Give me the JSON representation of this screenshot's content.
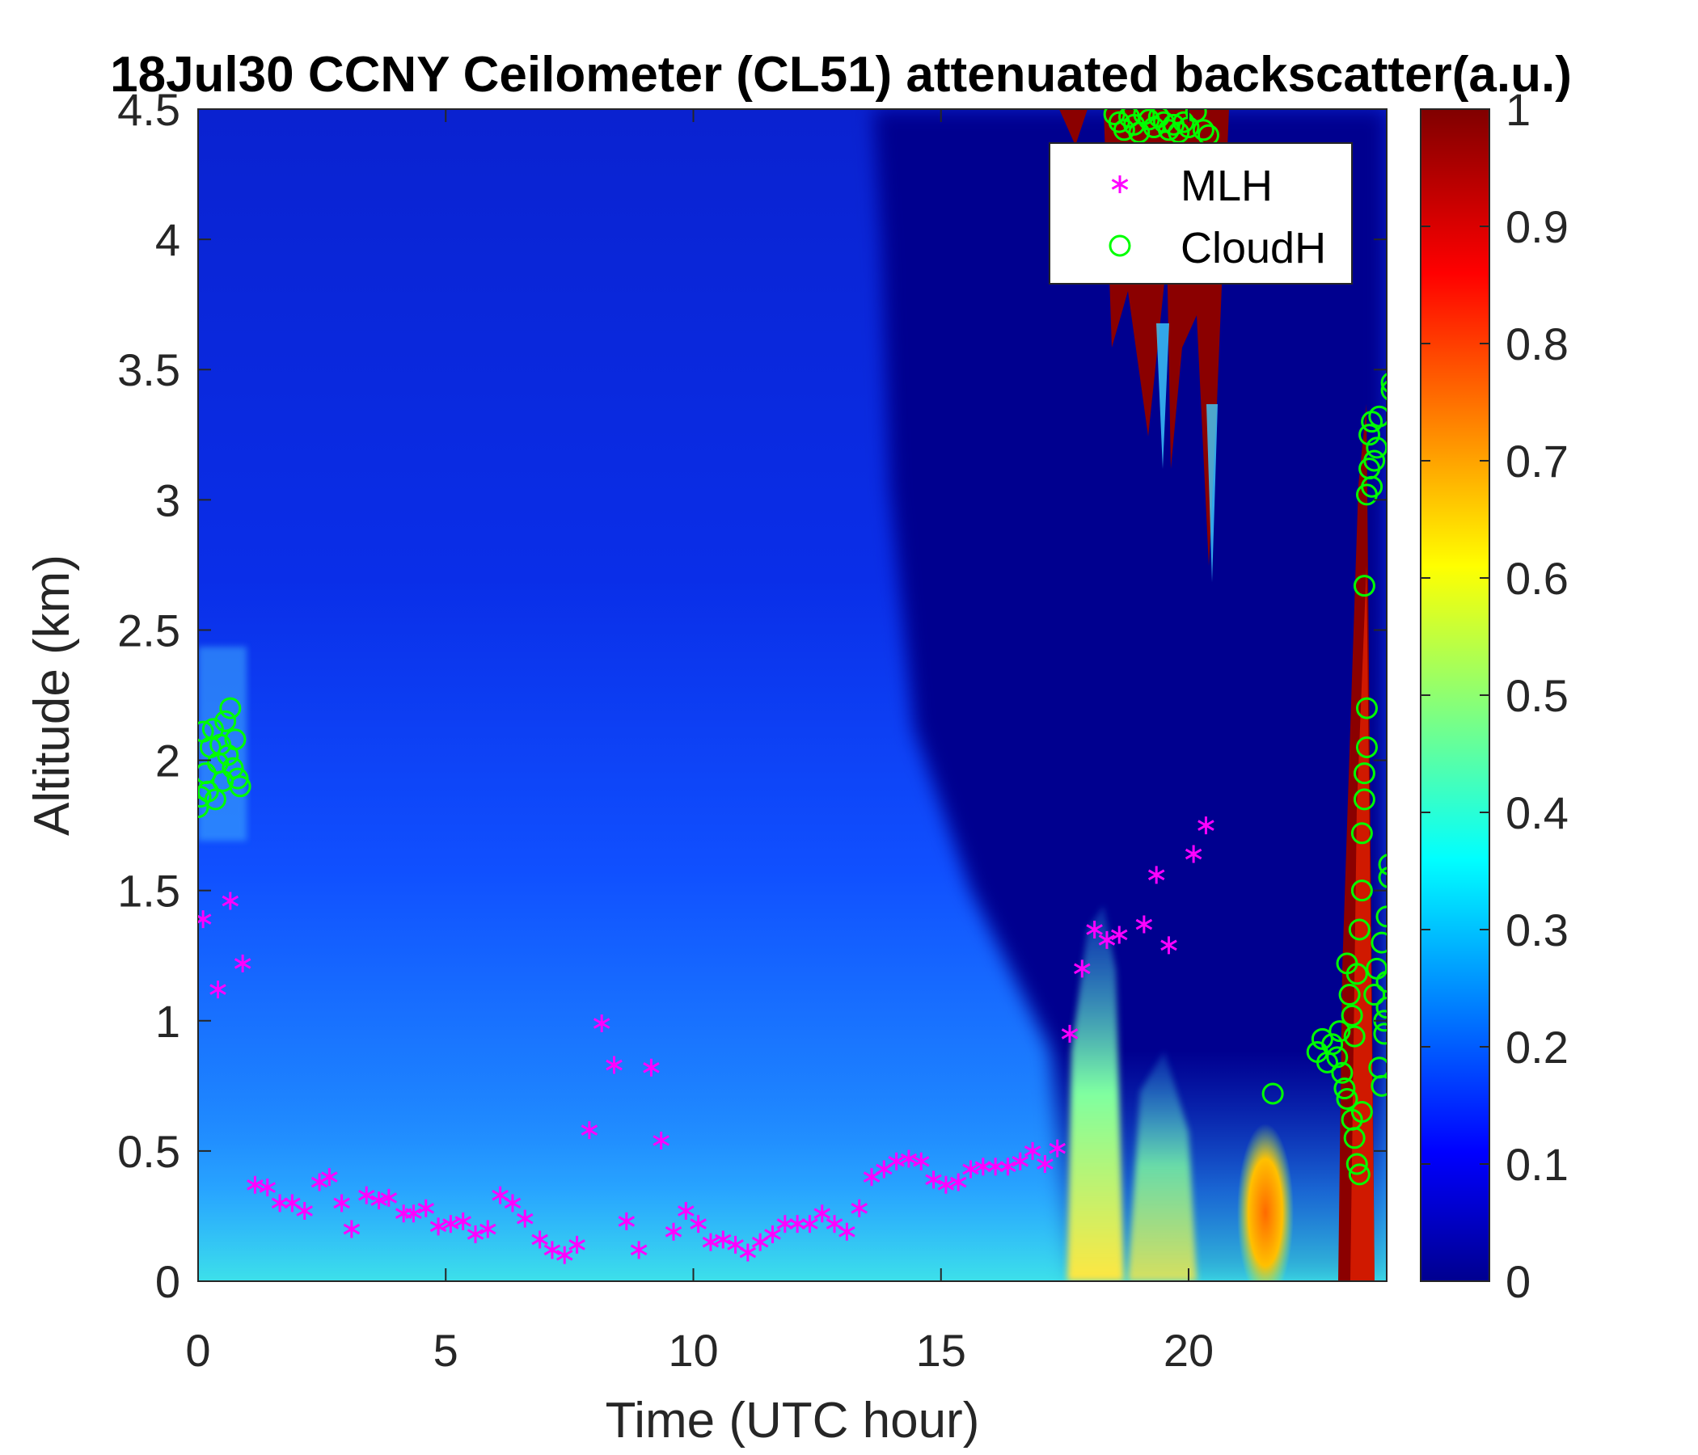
{
  "chart_data": {
    "type": "heatmap",
    "title": "18Jul30 CCNY Ceilometer (CL51) attenuated backscatter(a.u.)",
    "xlabel": "Time (UTC hour)",
    "ylabel": "Altitude (km)",
    "xlim": [
      0,
      24
    ],
    "ylim": [
      0,
      4.5
    ],
    "xticks": [
      0,
      5,
      10,
      15,
      20
    ],
    "yticks": [
      0,
      0.5,
      1,
      1.5,
      2,
      2.5,
      3,
      3.5,
      4,
      4.5
    ],
    "colorbar": {
      "colormap": "jet",
      "range": [
        0,
        1
      ],
      "ticks": [
        0,
        0.1,
        0.2,
        0.3,
        0.4,
        0.5,
        0.6,
        0.7,
        0.8,
        0.9,
        1
      ]
    },
    "legend": {
      "position": "top-right"
    },
    "series": [
      {
        "name": "MLH",
        "marker": "asterisk",
        "color": "#ff00ff",
        "points": [
          [
            0.1,
            1.39
          ],
          [
            0.4,
            1.12
          ],
          [
            0.65,
            1.46
          ],
          [
            0.9,
            1.22
          ],
          [
            1.15,
            0.37
          ],
          [
            1.4,
            0.36
          ],
          [
            1.65,
            0.3
          ],
          [
            1.9,
            0.3
          ],
          [
            2.15,
            0.27
          ],
          [
            2.45,
            0.38
          ],
          [
            2.65,
            0.4
          ],
          [
            2.9,
            0.3
          ],
          [
            3.1,
            0.2
          ],
          [
            3.4,
            0.33
          ],
          [
            3.65,
            0.31
          ],
          [
            3.85,
            0.32
          ],
          [
            4.15,
            0.26
          ],
          [
            4.35,
            0.26
          ],
          [
            4.6,
            0.28
          ],
          [
            4.85,
            0.21
          ],
          [
            5.1,
            0.22
          ],
          [
            5.35,
            0.23
          ],
          [
            5.6,
            0.18
          ],
          [
            5.85,
            0.2
          ],
          [
            6.1,
            0.33
          ],
          [
            6.35,
            0.3
          ],
          [
            6.6,
            0.24
          ],
          [
            6.9,
            0.16
          ],
          [
            7.15,
            0.12
          ],
          [
            7.4,
            0.1
          ],
          [
            7.65,
            0.14
          ],
          [
            7.9,
            0.58
          ],
          [
            8.15,
            0.99
          ],
          [
            8.4,
            0.83
          ],
          [
            8.65,
            0.23
          ],
          [
            8.9,
            0.12
          ],
          [
            9.15,
            0.82
          ],
          [
            9.35,
            0.54
          ],
          [
            9.6,
            0.19
          ],
          [
            9.85,
            0.27
          ],
          [
            10.1,
            0.22
          ],
          [
            10.35,
            0.15
          ],
          [
            10.6,
            0.16
          ],
          [
            10.85,
            0.14
          ],
          [
            11.1,
            0.11
          ],
          [
            11.35,
            0.15
          ],
          [
            11.6,
            0.18
          ],
          [
            11.85,
            0.22
          ],
          [
            12.1,
            0.22
          ],
          [
            12.35,
            0.22
          ],
          [
            12.6,
            0.26
          ],
          [
            12.85,
            0.22
          ],
          [
            13.1,
            0.19
          ],
          [
            13.35,
            0.28
          ],
          [
            13.6,
            0.4
          ],
          [
            13.85,
            0.43
          ],
          [
            14.1,
            0.46
          ],
          [
            14.35,
            0.47
          ],
          [
            14.6,
            0.46
          ],
          [
            14.85,
            0.39
          ],
          [
            15.1,
            0.37
          ],
          [
            15.35,
            0.38
          ],
          [
            15.6,
            0.43
          ],
          [
            15.85,
            0.44
          ],
          [
            16.1,
            0.44
          ],
          [
            16.35,
            0.44
          ],
          [
            16.6,
            0.46
          ],
          [
            16.85,
            0.5
          ],
          [
            17.1,
            0.45
          ],
          [
            17.35,
            0.51
          ],
          [
            17.6,
            0.95
          ],
          [
            17.85,
            1.2
          ],
          [
            18.1,
            1.35
          ],
          [
            18.35,
            1.31
          ],
          [
            18.6,
            1.33
          ],
          [
            19.1,
            1.37
          ],
          [
            19.35,
            1.56
          ],
          [
            19.6,
            1.29
          ],
          [
            20.1,
            1.64
          ],
          [
            20.35,
            1.75
          ]
        ]
      },
      {
        "name": "CloudH",
        "marker": "circle",
        "color": "#00ff00",
        "points": [
          [
            0.0,
            1.82
          ],
          [
            0.05,
            1.86
          ],
          [
            0.1,
            2.11
          ],
          [
            0.15,
            1.95
          ],
          [
            0.2,
            1.88
          ],
          [
            0.25,
            2.05
          ],
          [
            0.3,
            2.12
          ],
          [
            0.35,
            1.85
          ],
          [
            0.4,
            1.99
          ],
          [
            0.45,
            2.06
          ],
          [
            0.5,
            1.92
          ],
          [
            0.55,
            2.15
          ],
          [
            0.6,
            2.02
          ],
          [
            0.65,
            2.2
          ],
          [
            0.7,
            1.97
          ],
          [
            0.75,
            2.08
          ],
          [
            0.8,
            1.93
          ],
          [
            0.85,
            1.9
          ],
          [
            18.5,
            4.48
          ],
          [
            18.6,
            4.45
          ],
          [
            18.7,
            4.42
          ],
          [
            18.8,
            4.47
          ],
          [
            18.9,
            4.44
          ],
          [
            19.0,
            4.41
          ],
          [
            19.1,
            4.48
          ],
          [
            19.2,
            4.46
          ],
          [
            19.3,
            4.43
          ],
          [
            19.4,
            4.47
          ],
          [
            19.5,
            4.45
          ],
          [
            19.6,
            4.42
          ],
          [
            19.7,
            4.44
          ],
          [
            19.8,
            4.41
          ],
          [
            19.9,
            4.45
          ],
          [
            20.0,
            4.43
          ],
          [
            20.15,
            4.49
          ],
          [
            20.3,
            4.42
          ],
          [
            20.4,
            4.4
          ],
          [
            21.7,
            0.72
          ],
          [
            22.6,
            0.88
          ],
          [
            22.7,
            0.93
          ],
          [
            22.8,
            0.84
          ],
          [
            22.9,
            0.91
          ],
          [
            23.0,
            0.86
          ],
          [
            23.05,
            0.96
          ],
          [
            23.1,
            0.8
          ],
          [
            23.15,
            0.74
          ],
          [
            23.2,
            0.7
          ],
          [
            23.2,
            1.22
          ],
          [
            23.25,
            1.1
          ],
          [
            23.3,
            0.62
          ],
          [
            23.3,
            1.02
          ],
          [
            23.35,
            0.55
          ],
          [
            23.35,
            0.94
          ],
          [
            23.4,
            0.45
          ],
          [
            23.4,
            1.18
          ],
          [
            23.45,
            0.41
          ],
          [
            23.45,
            1.35
          ],
          [
            23.5,
            0.65
          ],
          [
            23.5,
            1.5
          ],
          [
            23.5,
            1.72
          ],
          [
            23.55,
            1.85
          ],
          [
            23.55,
            1.95
          ],
          [
            23.55,
            2.67
          ],
          [
            23.6,
            2.05
          ],
          [
            23.6,
            2.2
          ],
          [
            23.6,
            3.02
          ],
          [
            23.65,
            3.12
          ],
          [
            23.65,
            3.25
          ],
          [
            23.7,
            3.05
          ],
          [
            23.7,
            3.3
          ],
          [
            23.75,
            3.15
          ],
          [
            23.75,
            1.1
          ],
          [
            23.8,
            1.2
          ],
          [
            23.8,
            3.2
          ],
          [
            23.85,
            3.32
          ],
          [
            23.85,
            0.82
          ],
          [
            23.9,
            0.75
          ],
          [
            23.9,
            1.3
          ],
          [
            23.95,
            1.0
          ],
          [
            23.95,
            0.95
          ],
          [
            24.0,
            1.05
          ],
          [
            24.0,
            1.15
          ],
          [
            24.0,
            1.4
          ],
          [
            24.05,
            1.55
          ],
          [
            24.05,
            1.6
          ],
          [
            24.1,
            3.45
          ],
          [
            24.1,
            3.42
          ]
        ]
      }
    ]
  }
}
